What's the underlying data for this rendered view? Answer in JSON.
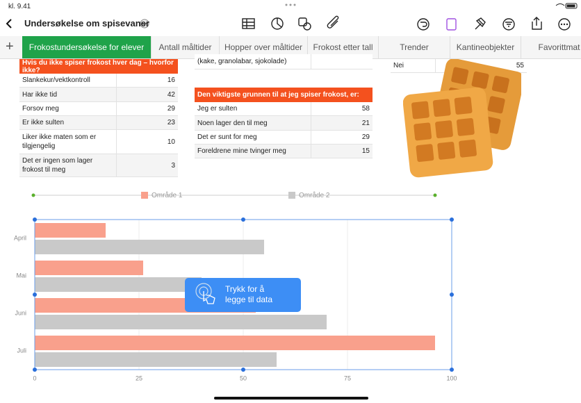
{
  "status_time": "kl. 9.41",
  "document_title": "Undersøkelse om spisevaner",
  "tabs": [
    "Frokostundersøkelse for elever",
    "Antall måltider",
    "Hopper over måltider",
    "Frokost etter tall",
    "Trender",
    "Kantineobjekter",
    "Favorittmat"
  ],
  "table_skip": {
    "title": "Hvis du ikke spiser frokost hver dag – hvorfor ikke?",
    "rows": [
      [
        "Slankekur/vektkontroll",
        "16"
      ],
      [
        "Har ikke tid",
        "42"
      ],
      [
        "Forsov meg",
        "29"
      ],
      [
        "Er ikke sulten",
        "23"
      ],
      [
        "Liker ikke maten som er tilgjengelig",
        "10"
      ],
      [
        "Det er ingen som lager frokost til meg",
        "3"
      ]
    ]
  },
  "table_partial": {
    "rows": [
      [
        "(kake, granolabar, sjokolade)",
        ""
      ]
    ]
  },
  "table_reason": {
    "title": "Den viktigste grunnen til at jeg spiser frokost, er:",
    "rows": [
      [
        "Jeg er sulten",
        "58"
      ],
      [
        "Noen lager den til meg",
        "21"
      ],
      [
        "Det er sunt for meg",
        "29"
      ],
      [
        "Foreldrene mine tvinger meg",
        "15"
      ]
    ]
  },
  "table_answer": {
    "rows": [
      [
        "Nei",
        "55"
      ]
    ]
  },
  "tooltip": [
    "Trykk for å",
    "legge til data"
  ],
  "chart_data": {
    "type": "hbar",
    "categories": [
      "April",
      "Mai",
      "Juni",
      "Juli"
    ],
    "series": [
      {
        "name": "Område 1",
        "color": "#f9a08c",
        "values": [
          17,
          26,
          53,
          96
        ]
      },
      {
        "name": "Område 2",
        "color": "#c9c9c9",
        "values": [
          55,
          40,
          70,
          58
        ]
      }
    ],
    "xlim": [
      0,
      100
    ],
    "xticks": [
      0,
      25,
      50,
      75,
      100
    ],
    "grid": true,
    "legend": "top"
  }
}
